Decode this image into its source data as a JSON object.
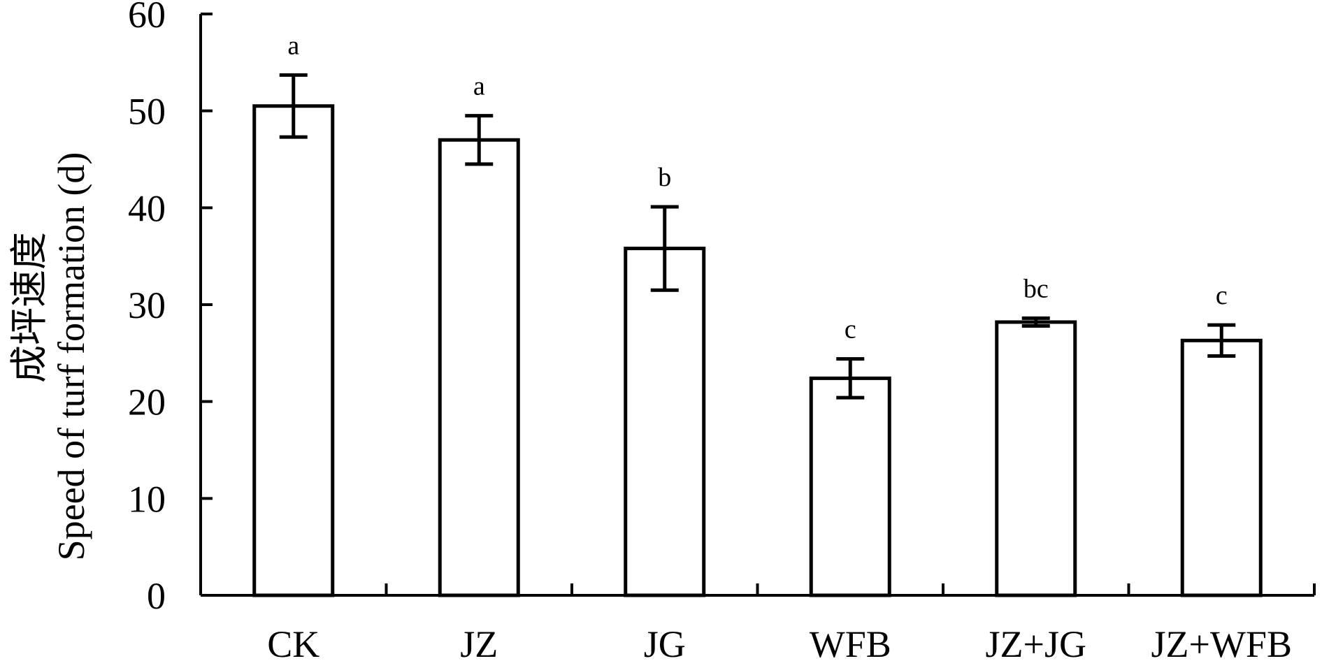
{
  "chart_data": {
    "type": "bar",
    "categories": [
      "CK",
      "JZ",
      "JG",
      "WFB",
      "JZ+JG",
      "JZ+WFB"
    ],
    "values": [
      50.5,
      47.0,
      35.8,
      22.4,
      28.2,
      26.3
    ],
    "errors": [
      3.2,
      2.5,
      4.3,
      2.0,
      0.4,
      1.6
    ],
    "significance": [
      "a",
      "a",
      "b",
      "c",
      "bc",
      "c"
    ],
    "ylabel_cn": "成坪速度",
    "ylabel_en": "Speed of turf formation (d)",
    "ylim": [
      0,
      60
    ],
    "yticks": [
      0,
      10,
      20,
      30,
      40,
      50,
      60
    ],
    "grid": false,
    "legend": "none"
  }
}
